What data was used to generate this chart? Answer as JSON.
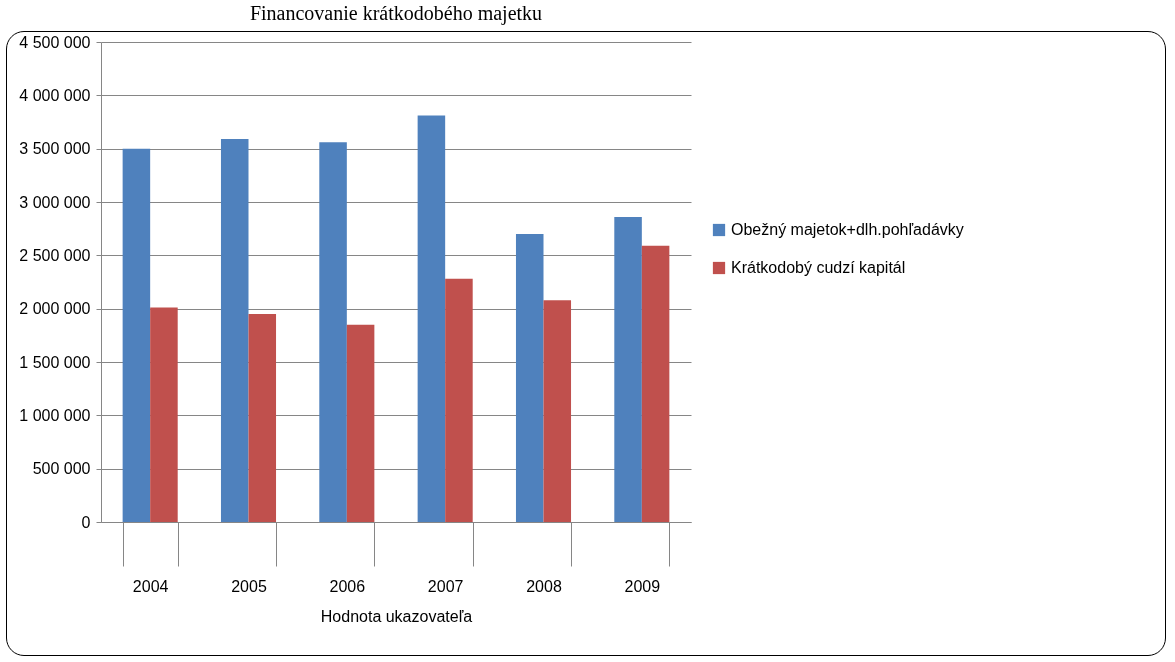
{
  "chart_data": {
    "type": "bar",
    "title": "Financovanie krátkodobého majetku",
    "xlabel": "Hodnota ukazovateľa",
    "categories": [
      "2004",
      "2005",
      "2006",
      "2007",
      "2008",
      "2009"
    ],
    "series": [
      {
        "name": "Obežný majetok+dlh.pohľadávky",
        "color": "#4f81bd",
        "values": [
          3500000,
          3590000,
          3560000,
          3810000,
          2700000,
          2860000
        ]
      },
      {
        "name": "Krátkodobý cudzí kapitál",
        "color": "#c0504d",
        "values": [
          2010000,
          1950000,
          1850000,
          2280000,
          2080000,
          2590000
        ]
      }
    ],
    "ylim": [
      0,
      4500000
    ],
    "yticks": [
      {
        "value": 0,
        "label": "0"
      },
      {
        "value": 500000,
        "label": "500 000"
      },
      {
        "value": 1000000,
        "label": "1 000 000"
      },
      {
        "value": 1500000,
        "label": "1 500 000"
      },
      {
        "value": 2000000,
        "label": "2 000 000"
      },
      {
        "value": 2500000,
        "label": "2 500 000"
      },
      {
        "value": 3000000,
        "label": "3 000 000"
      },
      {
        "value": 3500000,
        "label": "3 500 000"
      },
      {
        "value": 4000000,
        "label": "4 000 000"
      },
      {
        "value": 4500000,
        "label": "4 500 000"
      }
    ],
    "grid": "y",
    "legend": "right"
  }
}
